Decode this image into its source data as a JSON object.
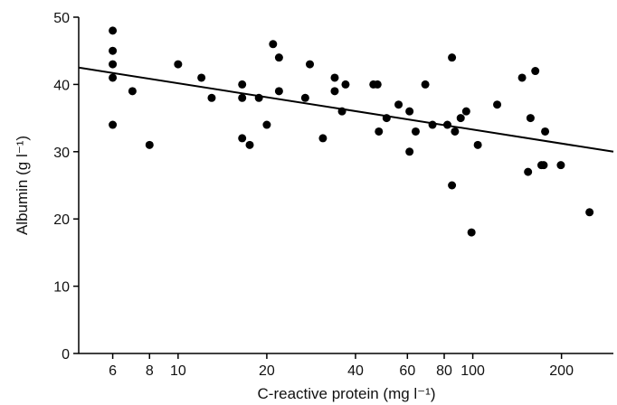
{
  "chart_data": {
    "type": "scatter",
    "title": "",
    "xlabel": "C-reactive protein (mg l⁻¹)",
    "ylabel": "Albumin (g l⁻¹)",
    "xscale": "log",
    "xlim": [
      4.6,
      300
    ],
    "ylim": [
      0,
      50
    ],
    "x_ticks": [
      6,
      8,
      10,
      20,
      40,
      60,
      80,
      100,
      200
    ],
    "x_tick_labels": [
      "6",
      "8",
      "10",
      "20",
      "40",
      "60",
      "80",
      "100",
      "200"
    ],
    "y_ticks": [
      0,
      10,
      20,
      30,
      40,
      50
    ],
    "y_tick_labels": [
      "0",
      "10",
      "20",
      "30",
      "40",
      "50"
    ],
    "grid": false,
    "legend": "none",
    "marker_color": "#000000",
    "points": [
      {
        "x": 6,
        "y": 48
      },
      {
        "x": 6,
        "y": 45
      },
      {
        "x": 6,
        "y": 43
      },
      {
        "x": 6,
        "y": 41
      },
      {
        "x": 6,
        "y": 34
      },
      {
        "x": 7,
        "y": 39
      },
      {
        "x": 8,
        "y": 31
      },
      {
        "x": 10,
        "y": 43
      },
      {
        "x": 12,
        "y": 41
      },
      {
        "x": 13,
        "y": 38
      },
      {
        "x": 16.5,
        "y": 40
      },
      {
        "x": 16.5,
        "y": 38
      },
      {
        "x": 16.5,
        "y": 32
      },
      {
        "x": 17.5,
        "y": 31
      },
      {
        "x": 18.8,
        "y": 38
      },
      {
        "x": 20,
        "y": 34
      },
      {
        "x": 21,
        "y": 46
      },
      {
        "x": 22,
        "y": 44
      },
      {
        "x": 22,
        "y": 39
      },
      {
        "x": 27,
        "y": 38
      },
      {
        "x": 28,
        "y": 43
      },
      {
        "x": 31,
        "y": 32
      },
      {
        "x": 34,
        "y": 41
      },
      {
        "x": 34,
        "y": 39
      },
      {
        "x": 36,
        "y": 36
      },
      {
        "x": 37,
        "y": 40
      },
      {
        "x": 46,
        "y": 40
      },
      {
        "x": 47.5,
        "y": 40
      },
      {
        "x": 48,
        "y": 33
      },
      {
        "x": 51,
        "y": 35
      },
      {
        "x": 56,
        "y": 37
      },
      {
        "x": 61,
        "y": 36
      },
      {
        "x": 61,
        "y": 30
      },
      {
        "x": 64,
        "y": 33
      },
      {
        "x": 69,
        "y": 40
      },
      {
        "x": 73,
        "y": 34
      },
      {
        "x": 82,
        "y": 34
      },
      {
        "x": 85,
        "y": 44
      },
      {
        "x": 85,
        "y": 25
      },
      {
        "x": 87,
        "y": 33
      },
      {
        "x": 91,
        "y": 35
      },
      {
        "x": 95,
        "y": 36
      },
      {
        "x": 99,
        "y": 18
      },
      {
        "x": 104,
        "y": 31
      },
      {
        "x": 121,
        "y": 37
      },
      {
        "x": 147,
        "y": 41
      },
      {
        "x": 154,
        "y": 27
      },
      {
        "x": 157,
        "y": 35
      },
      {
        "x": 163,
        "y": 42
      },
      {
        "x": 171,
        "y": 28
      },
      {
        "x": 174,
        "y": 28
      },
      {
        "x": 176,
        "y": 33
      },
      {
        "x": 199,
        "y": 28
      },
      {
        "x": 249,
        "y": 21
      }
    ],
    "trend_line": {
      "x": [
        4.6,
        300
      ],
      "y": [
        42.5,
        30
      ]
    }
  }
}
